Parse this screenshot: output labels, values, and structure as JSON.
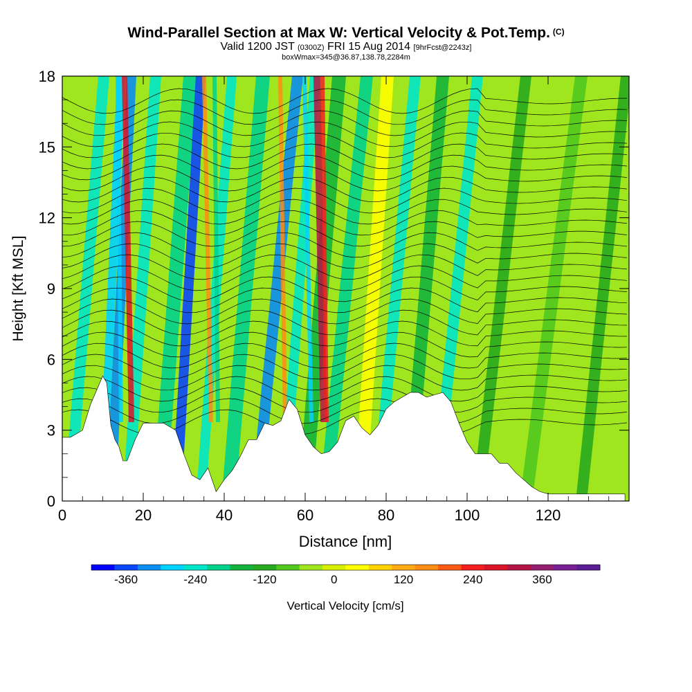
{
  "title": {
    "main": "Wind-Parallel Section at Max W: Vertical Velocity & Pot.Temp.",
    "mark": "(C)",
    "valid_pre": "Valid 1200 JST",
    "valid_z": "(0300Z)",
    "valid_date": "FRI 15 Aug 2014",
    "forecast": "[9hrFcst@2243z]",
    "box": "boxWmax=345@36.87,138.78,2284m"
  },
  "chart_data": {
    "type": "heatmap",
    "xlabel": "Distance [nm]",
    "ylabel": "Height [Kft MSL]",
    "xlim": [
      0,
      140
    ],
    "ylim": [
      0,
      18
    ],
    "xticks": [
      0,
      20,
      40,
      60,
      80,
      100,
      120
    ],
    "yticks": [
      0,
      3,
      6,
      9,
      12,
      15,
      18
    ],
    "colorbar": {
      "label": "Vertical Velocity [cm/s]",
      "ticks": [
        -360,
        -240,
        -120,
        0,
        120,
        240,
        360
      ],
      "min": -420,
      "step": 40,
      "colors": [
        "#0000ff",
        "#0a46fa",
        "#0a8cf0",
        "#00d2ff",
        "#00e6c8",
        "#00d28c",
        "#14b43c",
        "#28aa1e",
        "#50c81e",
        "#a0e61e",
        "#d8f000",
        "#ffff00",
        "#ffd200",
        "#ffaa14",
        "#ff8c14",
        "#ff5a14",
        "#f51e1e",
        "#dc1428",
        "#b41446",
        "#961e6e",
        "#7a1e96",
        "#5a1e96"
      ]
    },
    "terrain": {
      "x": [
        0,
        2,
        5,
        7,
        8,
        10,
        11,
        12,
        13,
        14,
        15,
        16,
        18,
        20,
        22,
        25,
        28,
        30,
        32,
        34,
        36,
        38,
        40,
        42,
        44,
        46,
        48,
        50,
        52,
        54,
        56,
        58,
        60,
        62,
        64,
        66,
        68,
        70,
        72,
        74,
        76,
        78,
        80,
        82,
        84,
        86,
        88,
        90,
        92,
        94,
        96,
        98,
        100,
        102,
        104,
        106,
        108,
        110,
        112,
        114,
        116,
        118,
        120,
        125,
        130,
        135,
        139
      ],
      "y": [
        2.7,
        2.7,
        3.0,
        4.1,
        4.5,
        5.3,
        5.0,
        3.2,
        2.6,
        2.3,
        1.7,
        1.7,
        2.6,
        3.3,
        3.3,
        3.3,
        3.0,
        2.0,
        1.1,
        0.9,
        1.4,
        0.4,
        0.9,
        1.3,
        1.9,
        2.6,
        2.6,
        3.3,
        3.2,
        3.4,
        4.3,
        3.9,
        2.8,
        2.3,
        2.0,
        2.1,
        2.5,
        3.4,
        3.6,
        3.1,
        2.8,
        3.2,
        3.9,
        4.2,
        4.4,
        4.6,
        4.6,
        4.4,
        4.5,
        4.6,
        4.2,
        3.3,
        2.5,
        2.0,
        2.0,
        2.0,
        1.6,
        1.6,
        1.2,
        0.9,
        0.6,
        0.4,
        0.3,
        0.3,
        0.3,
        0.3,
        0.3
      ]
    }
  }
}
